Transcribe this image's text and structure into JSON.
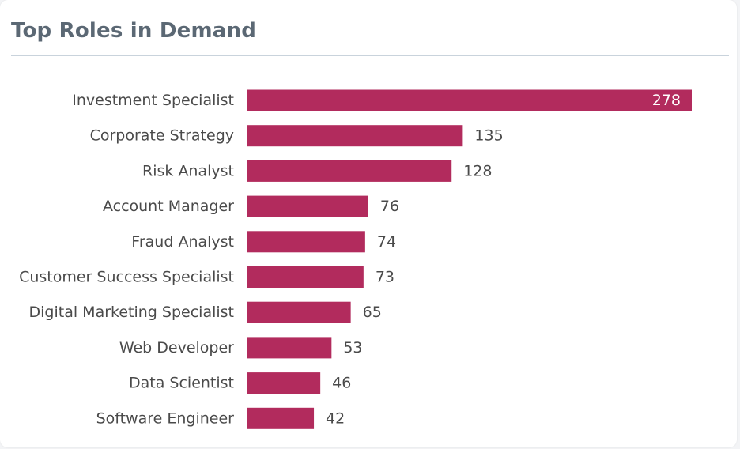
{
  "header": {
    "title": "Top Roles in Demand"
  },
  "colors": {
    "bar": "#b22b5d",
    "title": "#5b6874",
    "divider": "#c9d3dc"
  },
  "chart_data": {
    "type": "bar",
    "orientation": "horizontal",
    "title": "Top Roles in Demand",
    "categories": [
      "Investment Specialist",
      "Corporate Strategy",
      "Risk Analyst",
      "Account Manager",
      "Fraud Analyst",
      "Customer Success Specialist",
      "Digital Marketing Specialist",
      "Web Developer",
      "Data Scientist",
      "Software Engineer"
    ],
    "values": [
      278,
      135,
      128,
      76,
      74,
      73,
      65,
      53,
      46,
      42
    ],
    "xlim": [
      0,
      278
    ],
    "xlabel": "",
    "ylabel": "",
    "grid": false,
    "legend": "none",
    "data_labels": true
  }
}
